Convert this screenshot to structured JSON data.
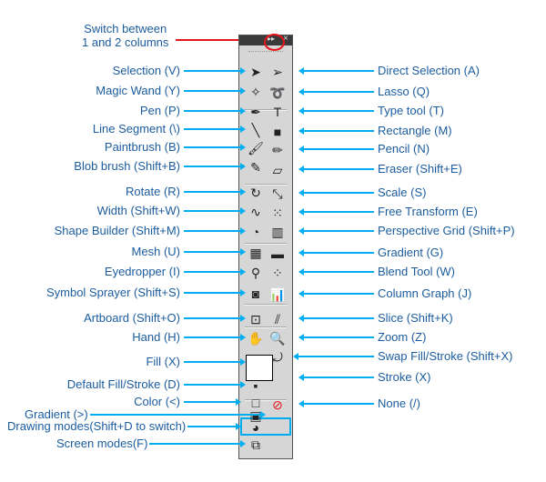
{
  "title_note": "Switch between\n1 and 2 columns",
  "left": [
    {
      "label": "Selection (V)",
      "icon": "selection-arrow-icon"
    },
    {
      "label": "Magic Wand (Y)",
      "icon": "magic-wand-icon"
    },
    {
      "label": "Pen (P)",
      "icon": "pen-icon"
    },
    {
      "label": "Line Segment (\\)",
      "icon": "line-segment-icon"
    },
    {
      "label": "Paintbrush (B)",
      "icon": "paintbrush-icon"
    },
    {
      "label": "Blob brush (Shift+B)",
      "icon": "blob-brush-icon"
    },
    {
      "label": "Rotate (R)",
      "icon": "rotate-icon"
    },
    {
      "label": "Width (Shift+W)",
      "icon": "width-icon"
    },
    {
      "label": "Shape Builder (Shift+M)",
      "icon": "shape-builder-icon"
    },
    {
      "label": "Mesh (U)",
      "icon": "mesh-icon"
    },
    {
      "label": "Eyedropper (I)",
      "icon": "eyedropper-icon"
    },
    {
      "label": "Symbol Sprayer (Shift+S)",
      "icon": "symbol-sprayer-icon"
    },
    {
      "label": "Artboard (Shift+O)",
      "icon": "artboard-icon"
    },
    {
      "label": "Hand (H)",
      "icon": "hand-icon"
    },
    {
      "label": "Fill (X)",
      "icon": "fill-swatch-icon"
    },
    {
      "label": "Default Fill/Stroke (D)",
      "icon": "default-fill-stroke-icon"
    },
    {
      "label": "Color (<)",
      "icon": "color-icon"
    },
    {
      "label": "Gradient (>)",
      "icon": "gradient-mode-icon"
    },
    {
      "label": "Drawing modes(Shift+D to switch)",
      "icon": "drawing-modes-icon"
    },
    {
      "label": "Screen modes(F)",
      "icon": "screen-modes-icon"
    }
  ],
  "right": [
    {
      "label": "Direct Selection (A)",
      "icon": "direct-selection-icon"
    },
    {
      "label": "Lasso (Q)",
      "icon": "lasso-icon"
    },
    {
      "label": "Type tool (T)",
      "icon": "type-icon"
    },
    {
      "label": "Rectangle (M)",
      "icon": "rectangle-icon"
    },
    {
      "label": "Pencil (N)",
      "icon": "pencil-icon"
    },
    {
      "label": "Eraser (Shift+E)",
      "icon": "eraser-icon"
    },
    {
      "label": "Scale (S)",
      "icon": "scale-icon"
    },
    {
      "label": "Free Transform (E)",
      "icon": "free-transform-icon"
    },
    {
      "label": "Perspective Grid (Shift+P)",
      "icon": "perspective-grid-icon"
    },
    {
      "label": "Gradient (G)",
      "icon": "gradient-icon"
    },
    {
      "label": "Blend Tool (W)",
      "icon": "blend-icon"
    },
    {
      "label": "Column Graph (J)",
      "icon": "column-graph-icon"
    },
    {
      "label": "Slice (Shift+K)",
      "icon": "slice-icon"
    },
    {
      "label": "Zoom (Z)",
      "icon": "zoom-icon"
    },
    {
      "label": "Swap Fill/Stroke (Shift+X)",
      "icon": "swap-icon"
    },
    {
      "label": "Stroke (X)",
      "icon": "stroke-swatch-icon"
    },
    {
      "label": "None (/)",
      "icon": "none-icon"
    }
  ],
  "colors": {
    "label": "#1b5c9e",
    "arrow": "#00aeef",
    "highlight": "#e8141b"
  }
}
